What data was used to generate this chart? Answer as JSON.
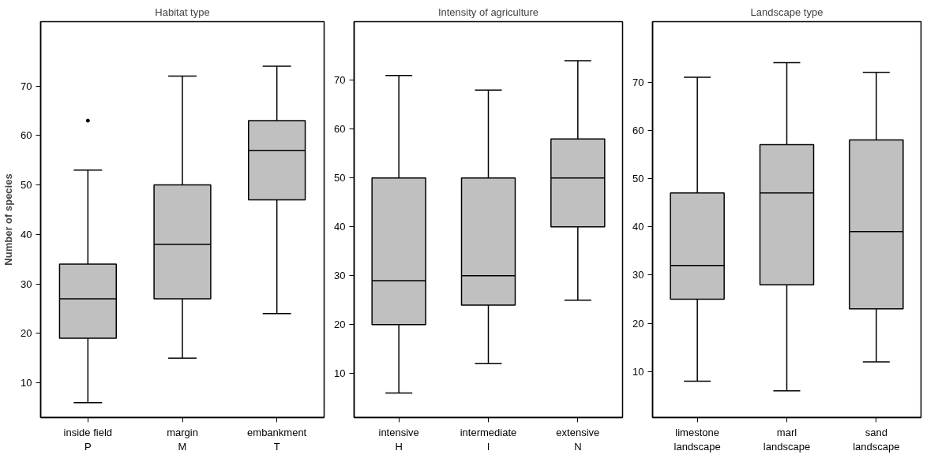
{
  "chart_data": [
    {
      "type": "box",
      "title": "Habitat type",
      "ylabel": "Number of species",
      "categories": [
        "inside field\nP",
        "margin\nM",
        "embankment\nT"
      ],
      "ylim": [
        3,
        83
      ],
      "yticks": [
        10,
        20,
        30,
        40,
        50,
        60,
        70
      ],
      "grid": false,
      "series": [
        {
          "color": "#c0c0c0",
          "boxes": [
            {
              "low": 6,
              "q1": 19,
              "median": 27,
              "q3": 34,
              "high": 53,
              "outliers": [
                63
              ]
            },
            {
              "low": 15,
              "q1": 27,
              "median": 38,
              "q3": 50,
              "high": 72
            },
            {
              "low": 24,
              "q1": 47,
              "median": 57,
              "q3": 63,
              "high": 74
            }
          ]
        }
      ]
    },
    {
      "type": "box",
      "title": "Intensity of agriculture",
      "categories": [
        "intensive\nH",
        "intermediate\nI",
        "extensive\nN"
      ],
      "ylim": [
        1,
        82
      ],
      "yticks": [
        10,
        20,
        30,
        40,
        50,
        60,
        70
      ],
      "grid": false,
      "series": [
        {
          "color": "#c0c0c0",
          "boxes": [
            {
              "low": 6,
              "q1": 20,
              "median": 29,
              "q3": 50,
              "high": 71
            },
            {
              "low": 12,
              "q1": 24,
              "median": 30,
              "q3": 50,
              "high": 68
            },
            {
              "low": 25,
              "q1": 40,
              "median": 50,
              "q3": 58,
              "high": 74
            }
          ]
        }
      ]
    },
    {
      "type": "box",
      "title": "Landscape type",
      "categories": [
        "limestone\nlandscape",
        "marl\nlandscape",
        "sand\nlandscape"
      ],
      "ylim": [
        0.5,
        82.5
      ],
      "yticks": [
        10,
        20,
        30,
        40,
        50,
        60,
        70
      ],
      "grid": false,
      "series": [
        {
          "color": "#c0c0c0",
          "boxes": [
            {
              "low": 8,
              "q1": 25,
              "median": 32,
              "q3": 47,
              "high": 71
            },
            {
              "low": 6,
              "q1": 28,
              "median": 47,
              "q3": 57,
              "high": 74
            },
            {
              "low": 12,
              "q1": 23,
              "median": 39,
              "q3": 58,
              "high": 72
            }
          ]
        }
      ]
    }
  ]
}
